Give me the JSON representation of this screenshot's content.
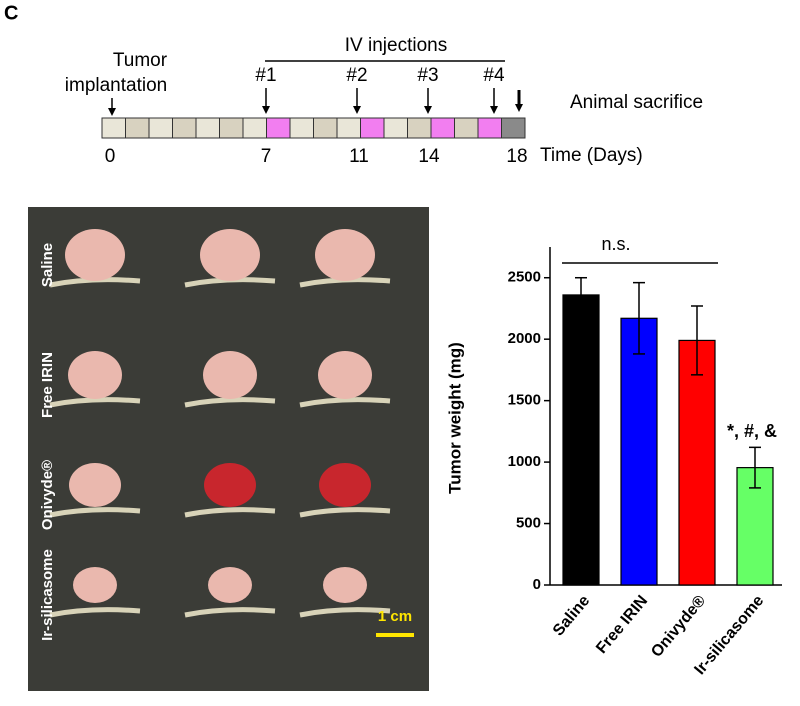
{
  "panel_label": "C",
  "timeline": {
    "implant_label": [
      "Tumor",
      "implantation"
    ],
    "injections_label": "IV injections",
    "injections": [
      "#1",
      "#2",
      "#3",
      "#4"
    ],
    "sacrifice_label": "Animal sacrifice",
    "days": [
      "0",
      "7",
      "11",
      "14",
      "18"
    ],
    "time_label": "Time (Days)"
  },
  "photo": {
    "groups": [
      "Saline",
      "Free IRIN",
      "Onivyde®",
      "Ir-silicasome"
    ],
    "scale_label": "1 cm"
  },
  "chart_data": {
    "type": "bar",
    "y_label": "Tumor weight (mg)",
    "categories": [
      "Saline",
      "Free IRIN",
      "Onivyde®",
      "Ir-silicasome"
    ],
    "values": [
      2360,
      2170,
      1990,
      955
    ],
    "errors": [
      140,
      290,
      280,
      165
    ],
    "colors": [
      "#000000",
      "#0000ff",
      "#ff0000",
      "#66ff66"
    ],
    "ylim": [
      0,
      2750
    ],
    "yticks": [
      0,
      500,
      1000,
      1500,
      2000,
      2500
    ],
    "annotations": [
      "n.s.",
      "*, #, &"
    ]
  }
}
